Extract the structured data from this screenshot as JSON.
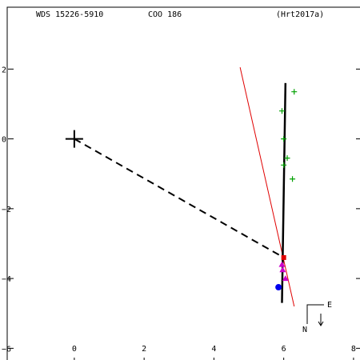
{
  "header": {
    "wds_id": "WDS 15226-5910",
    "discoverer": "COO 186",
    "reference": "(Hrt2017a)"
  },
  "chart_data": {
    "type": "scatter",
    "x_ticks": [
      0,
      2,
      4,
      6,
      8
    ],
    "y_ticks": [
      2,
      0,
      -2,
      -4,
      -6
    ],
    "x_tick_labels": [
      "0",
      "2",
      "4",
      "6",
      "8"
    ],
    "y_tick_labels": [
      "2",
      "0",
      "−2",
      "−4",
      "−6"
    ],
    "xlim": [
      -1.9,
      8.3
    ],
    "ylim": [
      3.75,
      -6.45
    ],
    "primary": {
      "x": 0,
      "y": 0,
      "marker": "large-cross"
    },
    "connector": {
      "from": [
        0,
        0
      ],
      "to": [
        6.0,
        -3.4
      ],
      "style": "dashed"
    },
    "orbit_arc": {
      "points": [
        [
          5.95,
          -4.7
        ],
        [
          6.05,
          1.6
        ]
      ],
      "color": "#000000"
    },
    "reference_line": {
      "points": [
        [
          4.75,
          2.05
        ],
        [
          6.3,
          -4.8
        ]
      ],
      "color": "#e00000"
    },
    "series": [
      {
        "name": "",
        "marker": "plus",
        "color": "#00a000",
        "points": [
          [
            6.3,
            1.35
          ],
          [
            5.95,
            0.8
          ],
          [
            6.0,
            0.0
          ],
          [
            6.1,
            -0.55
          ],
          [
            6.0,
            -0.75
          ],
          [
            6.25,
            -1.15
          ]
        ]
      },
      {
        "name": "",
        "marker": "triangle",
        "color": "#cc00cc",
        "points": [
          [
            5.95,
            -3.6
          ],
          [
            5.97,
            -3.75
          ],
          [
            6.05,
            -4.0
          ]
        ]
      },
      {
        "name": "",
        "marker": "square",
        "color": "#e00000",
        "points": [
          [
            6.0,
            -3.4
          ]
        ]
      },
      {
        "name": "",
        "marker": "circle",
        "color": "#0000ee",
        "points": [
          [
            5.85,
            -4.25
          ]
        ]
      }
    ],
    "compass": {
      "east_label": "E",
      "north_label": "N"
    }
  }
}
